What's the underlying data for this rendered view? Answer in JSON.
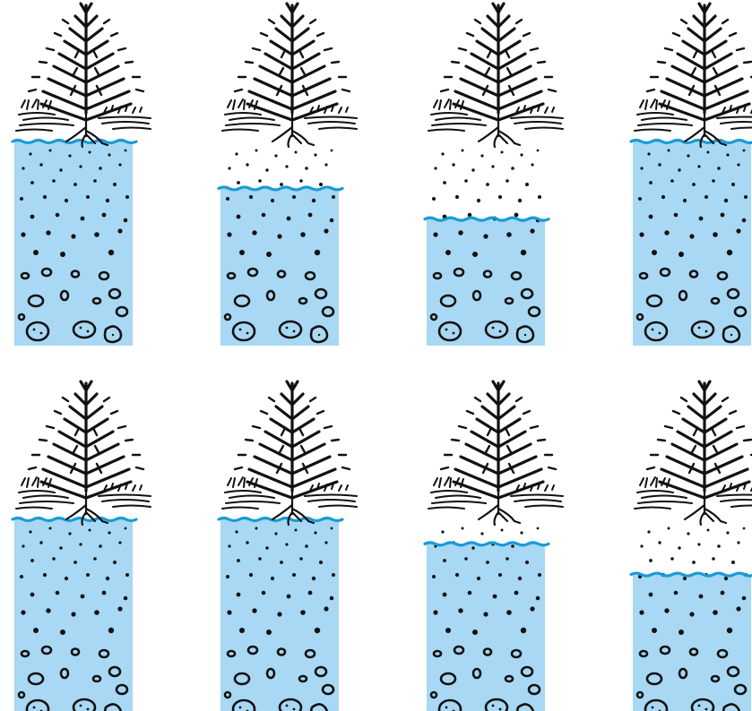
{
  "colors": {
    "water": "#a8d8f3",
    "water_line": "#1a9ad6",
    "ink": "#111111",
    "background": "#ffffff"
  },
  "diagram": {
    "rows": [
      {
        "columns": [
          {
            "water_level_fraction": 0.0
          },
          {
            "water_level_fraction": 0.23
          },
          {
            "water_level_fraction": 0.38
          },
          {
            "water_level_fraction": 0.0
          }
        ]
      },
      {
        "columns": [
          {
            "water_level_fraction": 0.0
          },
          {
            "water_level_fraction": 0.0
          },
          {
            "water_level_fraction": 0.12
          },
          {
            "water_level_fraction": 0.27
          }
        ]
      }
    ]
  }
}
